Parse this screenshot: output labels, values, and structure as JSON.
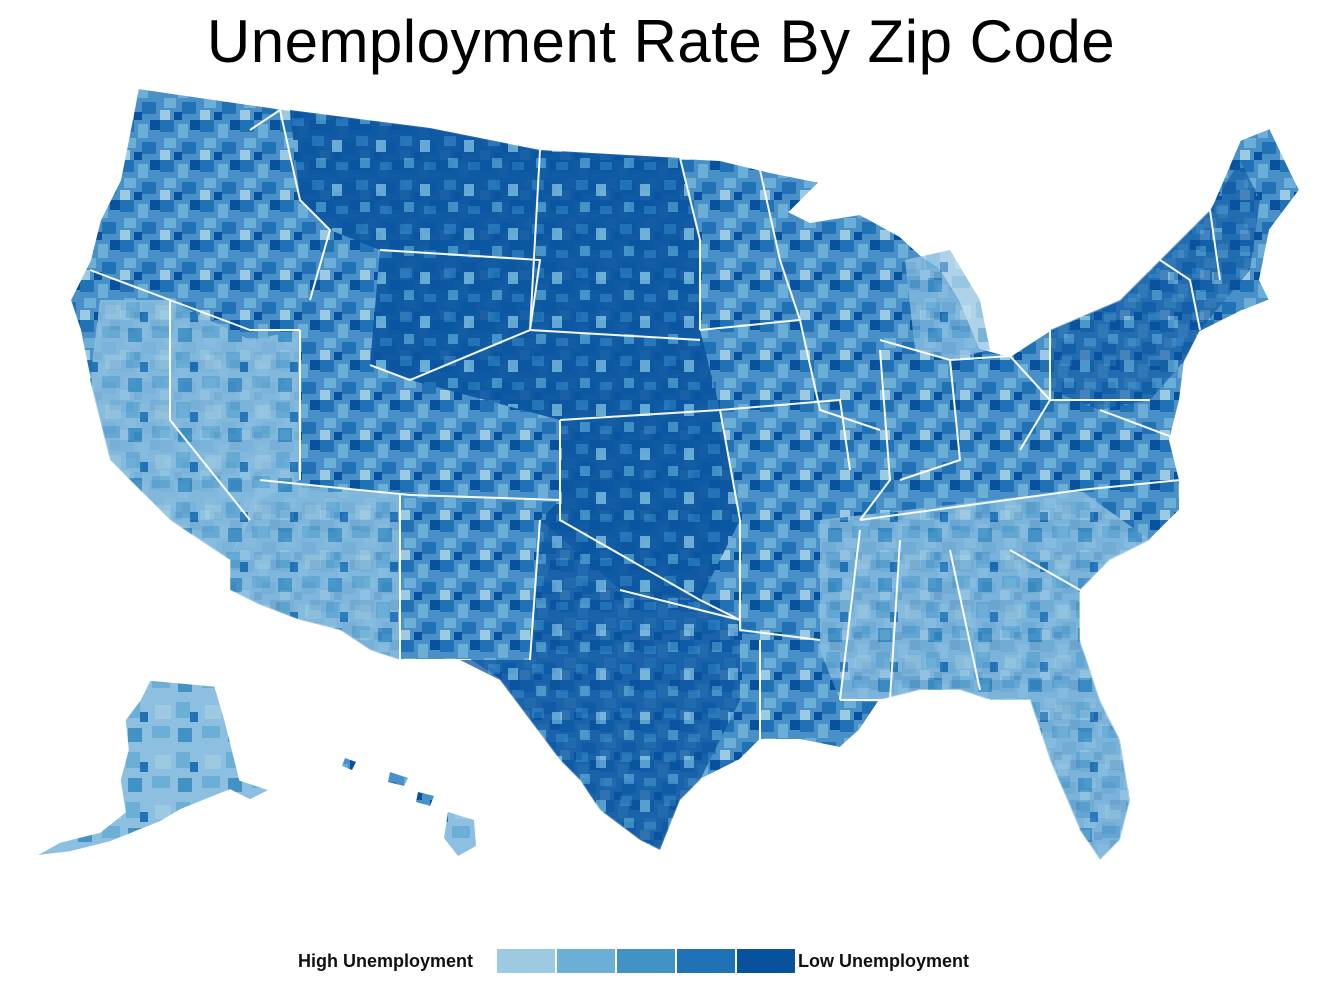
{
  "title": "Unemployment Rate By Zip Code",
  "legend": {
    "high_label": "High Unemployment",
    "low_label": "Low Unemployment",
    "colors": [
      "#9ecae1",
      "#6baed6",
      "#4292c6",
      "#2171b5",
      "#08519c"
    ]
  },
  "colors": {
    "state_border": "#ffffff",
    "background": "#ffffff"
  }
}
